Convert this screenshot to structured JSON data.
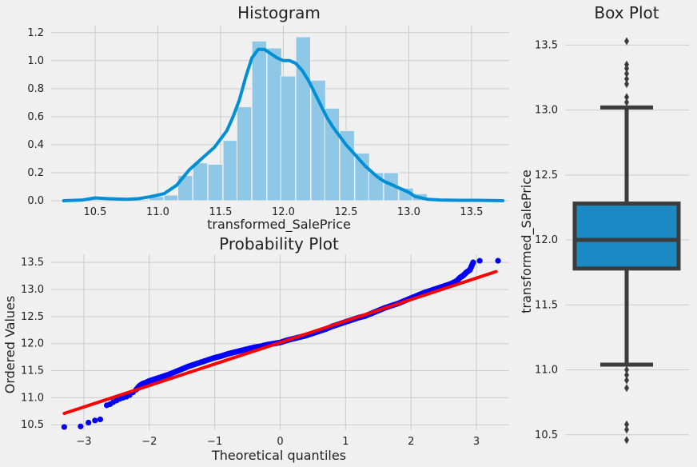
{
  "colors": {
    "background": "#f0f0f0",
    "grid": "#cbcbcb",
    "hist_bar": "#8fc8e6",
    "kde_line": "#008fd5",
    "qq_points": "#0000ff",
    "qq_line": "#ff0000",
    "box_fill": "#1b8ac4",
    "box_edge": "#3c3c3c"
  },
  "chart_data": [
    {
      "type": "bar",
      "subtype": "histogram_with_kde",
      "title": "Histogram",
      "xlabel": "transformed_SalePrice",
      "ylabel": "",
      "xlim": [
        10.15,
        13.8
      ],
      "ylim": [
        0,
        1.25
      ],
      "xticks": [
        10.5,
        11.0,
        11.5,
        12.0,
        12.5,
        13.0,
        13.5
      ],
      "yticks": [
        0.0,
        0.2,
        0.4,
        0.6,
        0.8,
        1.0,
        1.2
      ],
      "grid": true,
      "bin_width": 0.117,
      "bins": [
        {
          "x0": 10.46,
          "density": 0.0
        },
        {
          "x0": 10.58,
          "density": 0.0
        },
        {
          "x0": 10.7,
          "density": 0.0
        },
        {
          "x0": 10.81,
          "density": 0.0
        },
        {
          "x0": 10.93,
          "density": 0.03
        },
        {
          "x0": 11.05,
          "density": 0.04
        },
        {
          "x0": 11.16,
          "density": 0.18
        },
        {
          "x0": 11.28,
          "density": 0.27
        },
        {
          "x0": 11.4,
          "density": 0.26
        },
        {
          "x0": 11.52,
          "density": 0.43
        },
        {
          "x0": 11.63,
          "density": 0.67
        },
        {
          "x0": 11.75,
          "density": 1.14
        },
        {
          "x0": 11.87,
          "density": 1.09
        },
        {
          "x0": 11.98,
          "density": 0.89
        },
        {
          "x0": 12.1,
          "density": 1.17
        },
        {
          "x0": 12.22,
          "density": 0.86
        },
        {
          "x0": 12.33,
          "density": 0.66
        },
        {
          "x0": 12.45,
          "density": 0.5
        },
        {
          "x0": 12.57,
          "density": 0.34
        },
        {
          "x0": 12.68,
          "density": 0.2
        },
        {
          "x0": 12.8,
          "density": 0.2
        },
        {
          "x0": 12.92,
          "density": 0.09
        },
        {
          "x0": 13.03,
          "density": 0.05
        },
        {
          "x0": 13.15,
          "density": 0.0
        },
        {
          "x0": 13.27,
          "density": 0.0
        },
        {
          "x0": 13.38,
          "density": 0.0
        },
        {
          "x0": 13.5,
          "density": 0.0
        }
      ],
      "kde": {
        "x": [
          10.25,
          10.4,
          10.5,
          10.6,
          10.75,
          10.85,
          10.95,
          11.05,
          11.15,
          11.25,
          11.35,
          11.45,
          11.55,
          11.6,
          11.65,
          11.7,
          11.75,
          11.8,
          11.85,
          11.9,
          11.95,
          12.0,
          12.05,
          12.1,
          12.15,
          12.2,
          12.25,
          12.3,
          12.35,
          12.4,
          12.45,
          12.5,
          12.55,
          12.6,
          12.65,
          12.7,
          12.75,
          12.8,
          12.85,
          12.9,
          12.95,
          13.0,
          13.05,
          13.15,
          13.25,
          13.4,
          13.55,
          13.75
        ],
        "y": [
          0.0,
          0.005,
          0.02,
          0.015,
          0.01,
          0.015,
          0.03,
          0.05,
          0.11,
          0.22,
          0.3,
          0.38,
          0.5,
          0.6,
          0.72,
          0.88,
          1.02,
          1.08,
          1.08,
          1.05,
          1.02,
          1.0,
          1.0,
          0.98,
          0.93,
          0.86,
          0.77,
          0.68,
          0.59,
          0.52,
          0.46,
          0.4,
          0.35,
          0.3,
          0.25,
          0.21,
          0.17,
          0.14,
          0.12,
          0.1,
          0.08,
          0.06,
          0.03,
          0.01,
          0.005,
          0.003,
          0.003,
          0.0
        ]
      }
    },
    {
      "type": "scatter",
      "subtype": "probability_plot",
      "title": "Probability Plot",
      "xlabel": "Theoretical quantiles",
      "ylabel": "Ordered Values",
      "xlim": [
        -3.5,
        3.5
      ],
      "ylim": [
        10.4,
        13.65
      ],
      "xticks": [
        -3,
        -2,
        -1,
        0,
        1,
        2,
        3
      ],
      "yticks": [
        10.5,
        11.0,
        11.5,
        12.0,
        12.5,
        13.0,
        13.5
      ],
      "grid": true,
      "fit_line": {
        "x": [
          -3.3,
          3.3
        ],
        "y": [
          10.71,
          13.33
        ]
      },
      "points": {
        "x": [
          -3.3,
          -3.05,
          -2.93,
          -2.83,
          -2.75,
          -2.65,
          -2.6,
          -2.55,
          -2.5,
          -2.45,
          -2.4,
          -2.35,
          -2.3,
          -2.25,
          -2.2,
          -2.15,
          -2.1,
          -2.05,
          -2.0,
          -1.9,
          -1.8,
          -1.7,
          -1.6,
          -1.5,
          -1.4,
          -1.3,
          -1.2,
          -1.1,
          -1.0,
          -0.9,
          -0.8,
          -0.7,
          -0.6,
          -0.5,
          -0.4,
          -0.3,
          -0.2,
          -0.1,
          0.0,
          0.1,
          0.2,
          0.3,
          0.4,
          0.5,
          0.6,
          0.7,
          0.8,
          0.9,
          1.0,
          1.1,
          1.2,
          1.3,
          1.4,
          1.5,
          1.6,
          1.7,
          1.8,
          1.9,
          2.0,
          2.1,
          2.2,
          2.3,
          2.4,
          2.5,
          2.6,
          2.7,
          2.75,
          2.8,
          2.85,
          2.9,
          2.95,
          3.05,
          3.33
        ],
        "y": [
          10.46,
          10.47,
          10.54,
          10.58,
          10.6,
          10.86,
          10.88,
          10.92,
          10.95,
          10.98,
          11.0,
          11.02,
          11.05,
          11.1,
          11.15,
          11.22,
          11.26,
          11.28,
          11.31,
          11.35,
          11.39,
          11.43,
          11.48,
          11.53,
          11.58,
          11.62,
          11.66,
          11.7,
          11.74,
          11.77,
          11.81,
          11.84,
          11.87,
          11.9,
          11.93,
          11.95,
          11.98,
          12.0,
          12.02,
          12.06,
          12.09,
          12.12,
          12.15,
          12.19,
          12.23,
          12.27,
          12.32,
          12.36,
          12.4,
          12.44,
          12.48,
          12.51,
          12.56,
          12.61,
          12.66,
          12.7,
          12.74,
          12.79,
          12.84,
          12.89,
          12.94,
          12.98,
          13.02,
          13.06,
          13.1,
          13.16,
          13.22,
          13.26,
          13.32,
          13.36,
          13.5,
          13.53,
          13.53
        ]
      }
    },
    {
      "type": "box",
      "title": "Box Plot",
      "xlabel": "",
      "ylabel": "transformed_SalePrice",
      "ylim": [
        10.4,
        13.65
      ],
      "yticks": [
        10.5,
        11.0,
        11.5,
        12.0,
        12.5,
        13.0,
        13.5
      ],
      "grid": true,
      "q1": 11.78,
      "median": 12.0,
      "q3": 12.28,
      "whisker_low": 11.04,
      "whisker_high": 13.02,
      "outliers": [
        10.46,
        10.54,
        10.58,
        10.86,
        10.92,
        10.96,
        11.0,
        13.06,
        13.1,
        13.2,
        13.24,
        13.28,
        13.32,
        13.35,
        13.53
      ]
    }
  ]
}
